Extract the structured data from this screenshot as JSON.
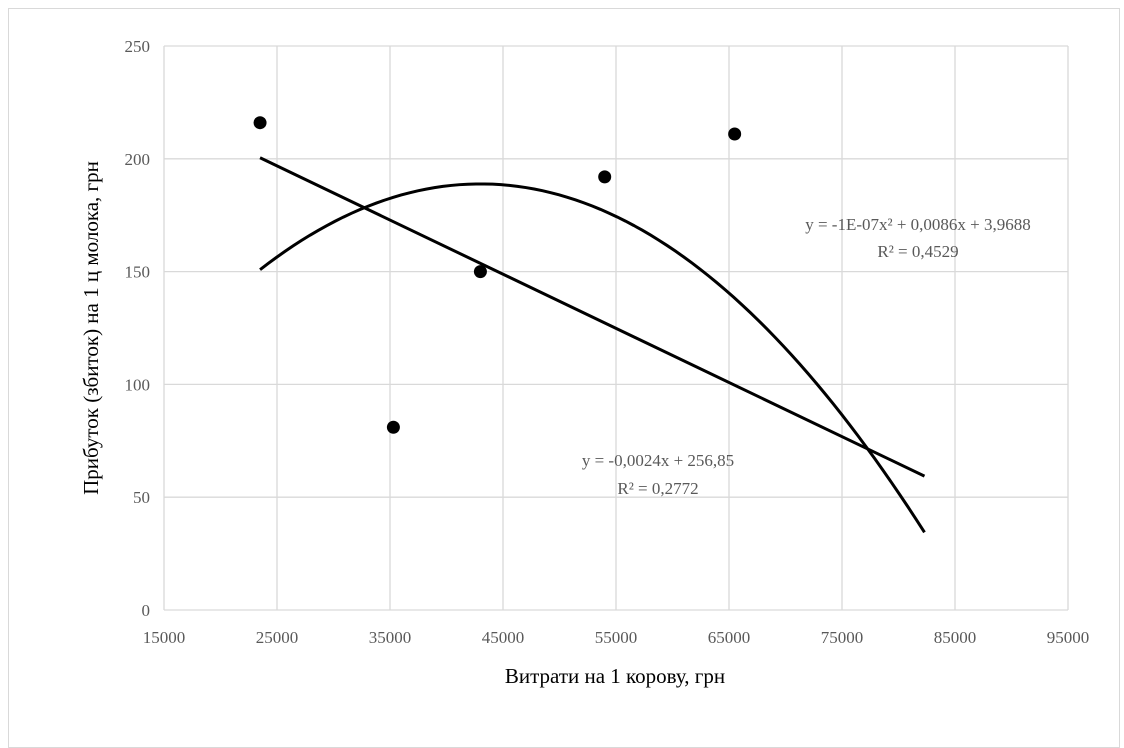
{
  "chart_data": {
    "type": "scatter",
    "xlabel": "Витрати на 1 корову, грн",
    "ylabel": "Прибуток (збиток) на 1 ц молока, грн",
    "xlim": [
      15000,
      95000
    ],
    "ylim": [
      0,
      250
    ],
    "xticks": [
      15000,
      25000,
      35000,
      45000,
      55000,
      65000,
      75000,
      85000,
      95000
    ],
    "yticks": [
      0,
      50,
      100,
      150,
      200,
      250
    ],
    "xtick_labels": [
      "15000",
      "25000",
      "35000",
      "45000",
      "55000",
      "65000",
      "75000",
      "85000",
      "95000"
    ],
    "ytick_labels": [
      "0",
      "50",
      "100",
      "150",
      "200",
      "250"
    ],
    "grid": true,
    "series": [
      {
        "kind": "points",
        "x": [
          23500,
          35300,
          43000,
          54000,
          65500
        ],
        "y": [
          216,
          81,
          150,
          192,
          211
        ],
        "color": "#000000"
      },
      {
        "kind": "linear-trend",
        "x_range": [
          23500,
          82300
        ],
        "slope": -0.0024,
        "intercept": 256.85,
        "equation": "y = -0,0024x + 256,85",
        "r2": "R² = 0,2772",
        "color": "#000000"
      },
      {
        "kind": "polynomial-trend",
        "x_range": [
          23500,
          82300
        ],
        "equation": "y = -1E-07x² + 0,0086x + 3,9688",
        "r2": "R² = 0,4529",
        "color": "#000000"
      }
    ]
  }
}
